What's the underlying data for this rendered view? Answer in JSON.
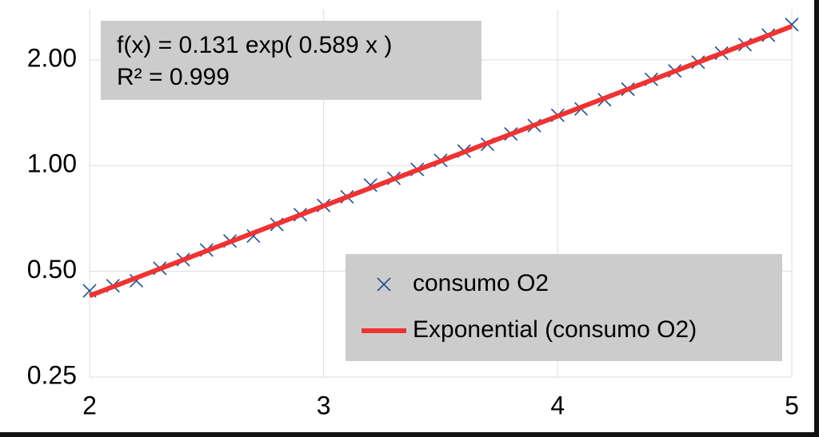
{
  "chart_data": {
    "type": "scatter",
    "yscale": "log",
    "grid": true,
    "legend_position": "bottom-right",
    "annotations": [
      "f(x) = 0.131 exp( 0.589 x )",
      "R² = 0.999"
    ],
    "xlim": [
      2,
      5
    ],
    "xticks": [
      2,
      3,
      4,
      5
    ],
    "ylim": [
      0.25,
      2.78
    ],
    "yticks": [
      {
        "value": 0.25,
        "label": "0.25"
      },
      {
        "value": 0.5,
        "label": "0.50"
      },
      {
        "value": 1,
        "label": "1.00"
      },
      {
        "value": 2,
        "label": "2.00"
      }
    ],
    "x": [
      2.0,
      2.1,
      2.2,
      2.3,
      2.4,
      2.5,
      2.6,
      2.7,
      2.8,
      2.9,
      3.0,
      3.1,
      3.2,
      3.3,
      3.4,
      3.5,
      3.6,
      3.7,
      3.8,
      3.9,
      4.0,
      4.1,
      4.2,
      4.3,
      4.4,
      4.5,
      4.6,
      4.7,
      4.8,
      4.9,
      5.0
    ],
    "series": [
      {
        "name": "consumo O2",
        "color": "#1f4e8c",
        "marker": "x",
        "values": [
          0.44,
          0.455,
          0.47,
          0.51,
          0.54,
          0.575,
          0.61,
          0.63,
          0.68,
          0.725,
          0.77,
          0.815,
          0.88,
          0.92,
          0.975,
          1.035,
          1.1,
          1.15,
          1.23,
          1.3,
          1.39,
          1.45,
          1.54,
          1.65,
          1.76,
          1.86,
          1.97,
          2.09,
          2.21,
          2.35,
          2.52
        ]
      },
      {
        "name": "Exponential (consumo O2)",
        "color": "#ee3333",
        "type": "line",
        "x": [
          2,
          5
        ],
        "values": [
          0.426,
          2.491
        ]
      }
    ]
  }
}
